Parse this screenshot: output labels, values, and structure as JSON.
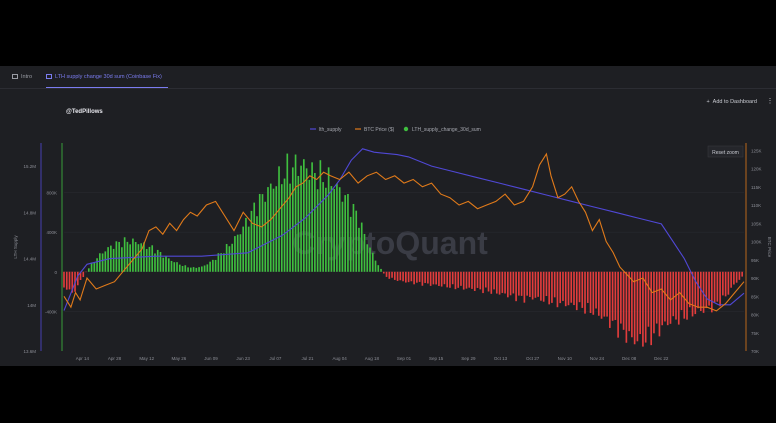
{
  "tabs": [
    {
      "label": "Intro"
    },
    {
      "label": "LTH supply change 30d sum (Coinbase Fix)"
    }
  ],
  "toolbar": {
    "add_label": "Add to Dashboard",
    "more_label": "⋮"
  },
  "author": "@TedPillows",
  "reset_zoom": "Reset zoom",
  "watermark": "CryptoQuant",
  "colors": {
    "background": "#1e1f23",
    "supply_line": "#5048d6",
    "price_line": "#e07a1a",
    "positive_bar": "#3fbf3f",
    "negative_bar": "#e23c3c",
    "accent_tab": "#7b7cf0"
  },
  "chart_data": {
    "type": "line+bar",
    "title": "",
    "legend_position": "top",
    "x_ticks": [
      "Apr 14",
      "Apr 28",
      "May 12",
      "May 26",
      "Jun 09",
      "Jun 23",
      "Jul 07",
      "Jul 21",
      "Aug 04",
      "Aug 18",
      "Sep 01",
      "Sep 15",
      "Sep 29",
      "Oct 13",
      "Oct 27",
      "Nov 10",
      "Nov 24",
      "Dec 08",
      "Dec 22"
    ],
    "x_range": [
      "2024-04-06",
      "2024-12-28"
    ],
    "left_axis": {
      "label": "LTH Supply",
      "ticks": [
        "15.2M",
        "14.8M",
        "14.4M",
        "14M",
        "13.6M"
      ],
      "range": [
        13.6,
        15.4
      ]
    },
    "inner_axis": {
      "ticks": [
        "800K",
        "400K",
        "0",
        "-400K"
      ],
      "range": [
        -800000,
        1300000
      ]
    },
    "right_axis": {
      "label": "BTC Price",
      "ticks": [
        "125K",
        "120K",
        "115K",
        "110K",
        "105K",
        "100K",
        "95K",
        "90K",
        "85K",
        "80K",
        "75K",
        "70K"
      ],
      "range": [
        70000,
        127000
      ]
    },
    "series": [
      {
        "name": "lth_supply",
        "kind": "line",
        "axis": "left",
        "color": "#5048d6",
        "points": [
          [
            0,
            13.95
          ],
          [
            2,
            14.05
          ],
          [
            6,
            14.25
          ],
          [
            10,
            14.35
          ],
          [
            20,
            14.4
          ],
          [
            40,
            14.42
          ],
          [
            60,
            14.42
          ],
          [
            80,
            14.45
          ],
          [
            95,
            14.6
          ],
          [
            105,
            14.75
          ],
          [
            115,
            14.95
          ],
          [
            120,
            15.08
          ],
          [
            125,
            15.25
          ],
          [
            130,
            15.35
          ],
          [
            135,
            15.32
          ],
          [
            145,
            15.3
          ],
          [
            150,
            15.28
          ],
          [
            160,
            15.2
          ],
          [
            170,
            15.15
          ],
          [
            180,
            15.1
          ],
          [
            190,
            15.05
          ],
          [
            200,
            15.0
          ],
          [
            210,
            14.95
          ],
          [
            220,
            14.9
          ],
          [
            230,
            14.85
          ],
          [
            240,
            14.8
          ],
          [
            250,
            14.75
          ],
          [
            260,
            14.7
          ],
          [
            265,
            14.55
          ],
          [
            270,
            14.4
          ],
          [
            275,
            14.2
          ],
          [
            280,
            14.05
          ],
          [
            285,
            14.0
          ],
          [
            290,
            14.0
          ],
          [
            296,
            14.1
          ]
        ]
      },
      {
        "name": "BTC Price ($)",
        "kind": "line",
        "axis": "right",
        "color": "#e07a1a",
        "points": [
          [
            0,
            85
          ],
          [
            3,
            82
          ],
          [
            5,
            86
          ],
          [
            7,
            84
          ],
          [
            10,
            90
          ],
          [
            14,
            87
          ],
          [
            18,
            88
          ],
          [
            22,
            89
          ],
          [
            26,
            92
          ],
          [
            30,
            95
          ],
          [
            34,
            98
          ],
          [
            37,
            103
          ],
          [
            40,
            104
          ],
          [
            43,
            102
          ],
          [
            46,
            105
          ],
          [
            49,
            103
          ],
          [
            52,
            106
          ],
          [
            55,
            108
          ],
          [
            58,
            107
          ],
          [
            62,
            110
          ],
          [
            66,
            111
          ],
          [
            70,
            107
          ],
          [
            74,
            103
          ],
          [
            78,
            108
          ],
          [
            82,
            105
          ],
          [
            86,
            104
          ],
          [
            90,
            106
          ],
          [
            94,
            109
          ],
          [
            98,
            112
          ],
          [
            101,
            115
          ],
          [
            104,
            116
          ],
          [
            107,
            118
          ],
          [
            110,
            117
          ],
          [
            113,
            119
          ],
          [
            116,
            118
          ],
          [
            120,
            117
          ],
          [
            124,
            119
          ],
          [
            128,
            116
          ],
          [
            132,
            118
          ],
          [
            136,
            119
          ],
          [
            140,
            117
          ],
          [
            144,
            118
          ],
          [
            148,
            116
          ],
          [
            152,
            117
          ],
          [
            156,
            115
          ],
          [
            160,
            116
          ],
          [
            164,
            113
          ],
          [
            168,
            112
          ],
          [
            172,
            110
          ],
          [
            176,
            111
          ],
          [
            180,
            109
          ],
          [
            184,
            110
          ],
          [
            188,
            111
          ],
          [
            192,
            113
          ],
          [
            196,
            110
          ],
          [
            200,
            111
          ],
          [
            204,
            115
          ],
          [
            207,
            121
          ],
          [
            210,
            124
          ],
          [
            212,
            118
          ],
          [
            215,
            112
          ],
          [
            218,
            113
          ],
          [
            221,
            115
          ],
          [
            224,
            111
          ],
          [
            227,
            108
          ],
          [
            230,
            103
          ],
          [
            233,
            106
          ],
          [
            236,
            100
          ],
          [
            239,
            97
          ],
          [
            242,
            93
          ],
          [
            245,
            91
          ],
          [
            248,
            89
          ],
          [
            252,
            90
          ],
          [
            256,
            86
          ],
          [
            260,
            87
          ],
          [
            264,
            84
          ],
          [
            268,
            86
          ],
          [
            272,
            83
          ],
          [
            276,
            82
          ],
          [
            280,
            82
          ],
          [
            284,
            81
          ],
          [
            288,
            83
          ],
          [
            292,
            86
          ],
          [
            296,
            89
          ]
        ]
      },
      {
        "name": "LTH_supply_change_30d_sum",
        "kind": "bar",
        "axis": "inner",
        "positive_color": "#3fbf3f",
        "negative_color": "#e23c3c",
        "points": [
          [
            0,
            -150000
          ],
          [
            4,
            -220000
          ],
          [
            8,
            -60000
          ],
          [
            12,
            80000
          ],
          [
            16,
            180000
          ],
          [
            20,
            250000
          ],
          [
            24,
            290000
          ],
          [
            28,
            310000
          ],
          [
            32,
            300000
          ],
          [
            36,
            260000
          ],
          [
            40,
            220000
          ],
          [
            44,
            150000
          ],
          [
            48,
            100000
          ],
          [
            52,
            60000
          ],
          [
            56,
            40000
          ],
          [
            60,
            50000
          ],
          [
            64,
            100000
          ],
          [
            68,
            180000
          ],
          [
            72,
            270000
          ],
          [
            76,
            380000
          ],
          [
            80,
            520000
          ],
          [
            84,
            680000
          ],
          [
            88,
            800000
          ],
          [
            92,
            900000
          ],
          [
            96,
            1000000
          ],
          [
            100,
            1060000
          ],
          [
            104,
            1080000
          ],
          [
            108,
            1000000
          ],
          [
            112,
            960000
          ],
          [
            116,
            920000
          ],
          [
            120,
            820000
          ],
          [
            124,
            700000
          ],
          [
            128,
            550000
          ],
          [
            132,
            300000
          ],
          [
            136,
            100000
          ],
          [
            140,
            -50000
          ],
          [
            144,
            -80000
          ],
          [
            148,
            -100000
          ],
          [
            152,
            -110000
          ],
          [
            156,
            -120000
          ],
          [
            160,
            -130000
          ],
          [
            164,
            -140000
          ],
          [
            168,
            -150000
          ],
          [
            172,
            -160000
          ],
          [
            176,
            -170000
          ],
          [
            180,
            -180000
          ],
          [
            184,
            -190000
          ],
          [
            188,
            -210000
          ],
          [
            192,
            -230000
          ],
          [
            196,
            -250000
          ],
          [
            200,
            -270000
          ],
          [
            204,
            -260000
          ],
          [
            208,
            -280000
          ],
          [
            212,
            -300000
          ],
          [
            216,
            -320000
          ],
          [
            220,
            -330000
          ],
          [
            224,
            -350000
          ],
          [
            228,
            -380000
          ],
          [
            232,
            -420000
          ],
          [
            236,
            -480000
          ],
          [
            240,
            -540000
          ],
          [
            244,
            -620000
          ],
          [
            248,
            -690000
          ],
          [
            252,
            -700000
          ],
          [
            256,
            -640000
          ],
          [
            260,
            -560000
          ],
          [
            264,
            -500000
          ],
          [
            268,
            -470000
          ],
          [
            272,
            -430000
          ],
          [
            276,
            -400000
          ],
          [
            280,
            -380000
          ],
          [
            284,
            -330000
          ],
          [
            288,
            -250000
          ],
          [
            292,
            -120000
          ],
          [
            296,
            -40000
          ]
        ]
      }
    ]
  }
}
